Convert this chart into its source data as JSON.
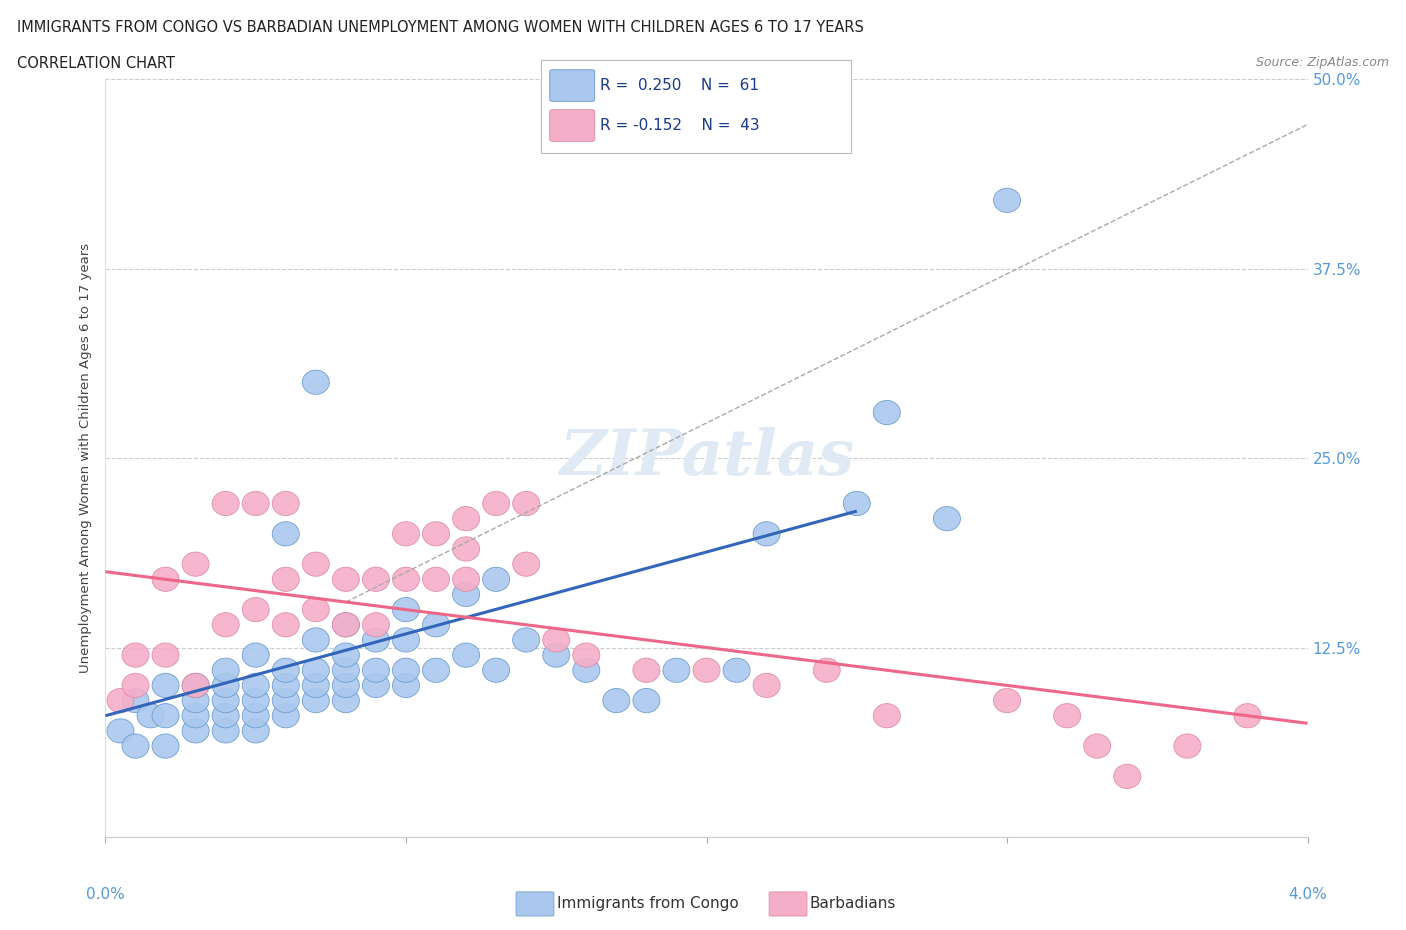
{
  "title_line1": "IMMIGRANTS FROM CONGO VS BARBADIAN UNEMPLOYMENT AMONG WOMEN WITH CHILDREN AGES 6 TO 17 YEARS",
  "title_line2": "CORRELATION CHART",
  "source_text": "Source: ZipAtlas.com",
  "ylabel": "Unemployment Among Women with Children Ages 6 to 17 years",
  "xlim": [
    0.0,
    0.04
  ],
  "ylim": [
    0.0,
    0.5
  ],
  "yticks": [
    0.0,
    0.125,
    0.25,
    0.375,
    0.5
  ],
  "ytick_labels": [
    "",
    "12.5%",
    "25.0%",
    "37.5%",
    "50.0%"
  ],
  "xticks": [
    0.0,
    0.01,
    0.02,
    0.03,
    0.04
  ],
  "color_congo": "#aac8ee",
  "color_barbadian": "#f5aec8",
  "color_congo_edge": "#6699cc",
  "color_barbadian_edge": "#dd88aa",
  "color_congo_line": "#3366bb",
  "color_barbadian_line": "#ee6688",
  "color_dashed": "#aaaaaa",
  "color_yaxis": "#5599dd",
  "watermark_color": "#e0eaf5",
  "congo_scatter_x": [
    0.0005,
    0.001,
    0.001,
    0.0015,
    0.002,
    0.002,
    0.002,
    0.003,
    0.003,
    0.003,
    0.003,
    0.004,
    0.004,
    0.004,
    0.004,
    0.004,
    0.005,
    0.005,
    0.005,
    0.005,
    0.005,
    0.006,
    0.006,
    0.006,
    0.006,
    0.006,
    0.007,
    0.007,
    0.007,
    0.007,
    0.007,
    0.008,
    0.008,
    0.008,
    0.008,
    0.008,
    0.009,
    0.009,
    0.009,
    0.01,
    0.01,
    0.01,
    0.01,
    0.011,
    0.011,
    0.012,
    0.012,
    0.013,
    0.013,
    0.014,
    0.015,
    0.016,
    0.017,
    0.018,
    0.019,
    0.021,
    0.022,
    0.025,
    0.026,
    0.028,
    0.03
  ],
  "congo_scatter_y": [
    0.07,
    0.06,
    0.09,
    0.08,
    0.06,
    0.08,
    0.1,
    0.07,
    0.08,
    0.09,
    0.1,
    0.07,
    0.08,
    0.09,
    0.1,
    0.11,
    0.07,
    0.08,
    0.09,
    0.1,
    0.12,
    0.08,
    0.09,
    0.1,
    0.11,
    0.2,
    0.09,
    0.1,
    0.11,
    0.13,
    0.3,
    0.09,
    0.1,
    0.11,
    0.12,
    0.14,
    0.1,
    0.11,
    0.13,
    0.1,
    0.11,
    0.13,
    0.15,
    0.11,
    0.14,
    0.12,
    0.16,
    0.11,
    0.17,
    0.13,
    0.12,
    0.11,
    0.09,
    0.09,
    0.11,
    0.11,
    0.2,
    0.22,
    0.28,
    0.21,
    0.42
  ],
  "barbadian_scatter_x": [
    0.0005,
    0.001,
    0.001,
    0.002,
    0.002,
    0.003,
    0.003,
    0.004,
    0.004,
    0.005,
    0.005,
    0.006,
    0.006,
    0.006,
    0.007,
    0.007,
    0.008,
    0.008,
    0.009,
    0.009,
    0.01,
    0.01,
    0.011,
    0.011,
    0.012,
    0.012,
    0.012,
    0.013,
    0.014,
    0.014,
    0.015,
    0.016,
    0.018,
    0.02,
    0.022,
    0.024,
    0.026,
    0.03,
    0.032,
    0.033,
    0.034,
    0.036,
    0.038
  ],
  "barbadian_scatter_y": [
    0.09,
    0.1,
    0.12,
    0.12,
    0.17,
    0.1,
    0.18,
    0.14,
    0.22,
    0.15,
    0.22,
    0.14,
    0.17,
    0.22,
    0.15,
    0.18,
    0.14,
    0.17,
    0.14,
    0.17,
    0.17,
    0.2,
    0.17,
    0.2,
    0.17,
    0.19,
    0.21,
    0.22,
    0.18,
    0.22,
    0.13,
    0.12,
    0.11,
    0.11,
    0.1,
    0.11,
    0.08,
    0.09,
    0.08,
    0.06,
    0.04,
    0.06,
    0.08
  ],
  "congo_line_x0": 0.0,
  "congo_line_y0": 0.08,
  "congo_line_x1": 0.025,
  "congo_line_y1": 0.215,
  "barb_line_x0": 0.0,
  "barb_line_y0": 0.175,
  "barb_line_x1": 0.04,
  "barb_line_y1": 0.075,
  "dash_line_x0": 0.008,
  "dash_line_y0": 0.155,
  "dash_line_x1": 0.04,
  "dash_line_y1": 0.47
}
